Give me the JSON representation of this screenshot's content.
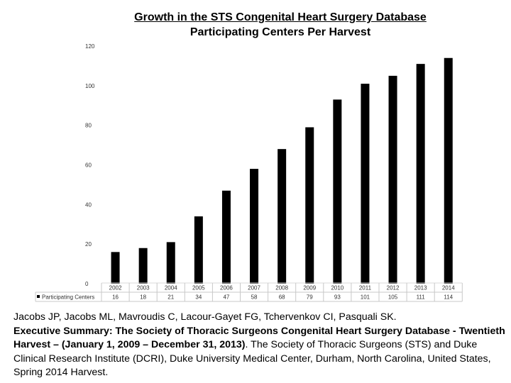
{
  "chart_data": {
    "type": "bar",
    "title_line1": "Growth in the STS Congenital Heart Surgery Database",
    "title_line2": "Participating Centers Per Harvest",
    "categories": [
      "2002",
      "2003",
      "2004",
      "2005",
      "2006",
      "2007",
      "2008",
      "2009",
      "2010",
      "2011",
      "2012",
      "2013",
      "2014"
    ],
    "series": [
      {
        "name": "Participating Centers",
        "values": [
          16,
          18,
          21,
          34,
          47,
          58,
          68,
          79,
          93,
          101,
          105,
          111,
          114
        ]
      }
    ],
    "ylim": [
      0,
      120
    ],
    "yticks": [
      0,
      20,
      40,
      60,
      80,
      100,
      120
    ],
    "xlabel": "",
    "ylabel": "",
    "legend": "data-table-left",
    "bar_color": "#000000"
  },
  "citation": {
    "authors": "Jacobs JP, Jacobs ML, Mavroudis C, Lacour-Gayet FG, Tchervenkov CI, Pasquali SK.",
    "title": "Executive Summary: The Society of Thoracic Surgeons Congenital Heart Surgery Database - Twentieth Harvest – (January 1, 2009 – December 31, 2013)",
    "rest": ". The Society of Thoracic Surgeons (STS) and Duke Clinical Research Institute (DCRI), Duke University Medical Center, Durham, North Carolina, United States, Spring 2014 Harvest."
  }
}
